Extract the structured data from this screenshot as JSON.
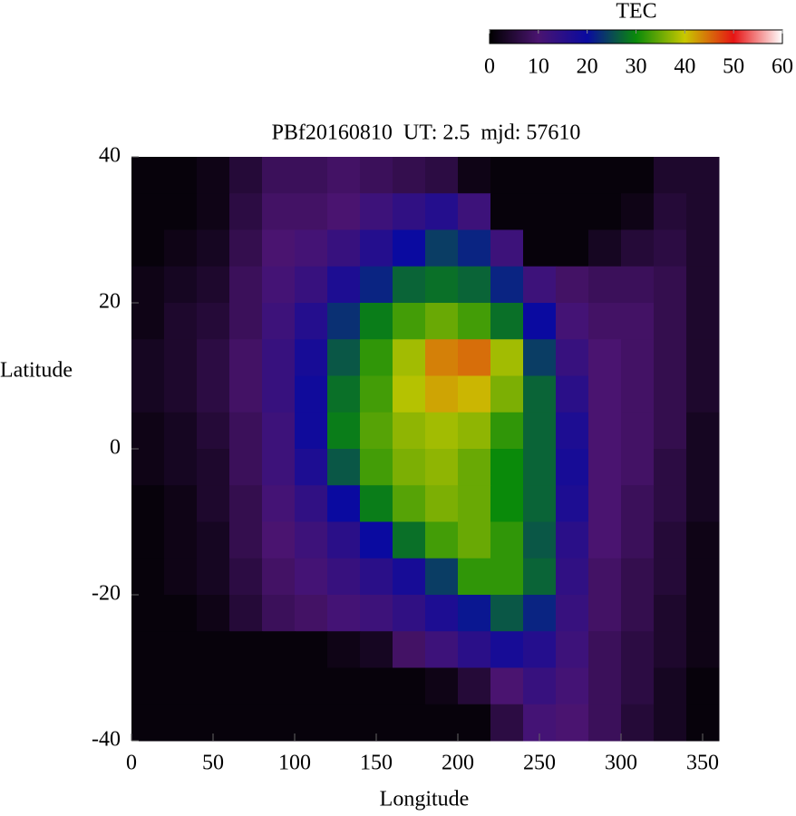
{
  "chart_data": {
    "type": "heatmap",
    "title": "PBf20160810  UT: 2.5  mjd: 57610",
    "x_label": "Longitude",
    "y_label": "Latitude",
    "colorbar_label": "TEC",
    "x": [
      10,
      30,
      50,
      70,
      90,
      110,
      130,
      150,
      170,
      190,
      210,
      230,
      250,
      270,
      290,
      310,
      330,
      350
    ],
    "y": [
      37.5,
      32.5,
      27.5,
      22.5,
      17.5,
      12.5,
      7.5,
      2.5,
      -2.5,
      -7.5,
      -12.5,
      -17.5,
      -22.5,
      -27.5,
      -32.5,
      -37.5
    ],
    "z": [
      [
        1,
        1,
        2,
        5,
        8,
        8,
        9,
        8,
        7,
        6,
        2,
        1,
        1,
        1,
        1,
        1,
        4,
        4
      ],
      [
        1,
        1,
        2,
        6,
        9,
        9,
        10,
        12,
        14,
        16,
        12,
        1,
        1,
        1,
        1,
        2,
        5,
        4
      ],
      [
        1,
        2,
        3,
        7,
        10,
        11,
        13,
        16,
        20,
        24,
        22,
        12,
        1,
        1,
        3,
        5,
        6,
        4
      ],
      [
        2,
        3,
        4,
        8,
        11,
        13,
        17,
        22,
        27,
        28,
        27,
        22,
        12,
        9,
        8,
        8,
        7,
        4
      ],
      [
        2,
        4,
        5,
        8,
        12,
        16,
        23,
        29,
        33,
        35,
        33,
        28,
        20,
        11,
        9,
        9,
        7,
        4
      ],
      [
        3,
        4,
        6,
        9,
        13,
        18,
        26,
        32,
        38,
        44,
        45,
        38,
        24,
        13,
        10,
        9,
        7,
        4
      ],
      [
        3,
        4,
        6,
        9,
        13,
        19,
        28,
        33,
        39,
        42,
        41,
        36,
        27,
        15,
        10,
        9,
        7,
        4
      ],
      [
        2,
        3,
        5,
        8,
        12,
        19,
        29,
        34,
        37,
        38,
        37,
        32,
        27,
        17,
        10,
        9,
        7,
        3
      ],
      [
        2,
        3,
        4,
        8,
        12,
        17,
        26,
        33,
        36,
        37,
        35,
        30,
        27,
        18,
        10,
        9,
        6,
        3
      ],
      [
        1,
        2,
        4,
        7,
        11,
        14,
        20,
        29,
        34,
        36,
        35,
        30,
        27,
        17,
        10,
        8,
        6,
        3
      ],
      [
        1,
        2,
        3,
        7,
        10,
        12,
        15,
        20,
        28,
        33,
        35,
        32,
        26,
        15,
        10,
        8,
        5,
        2
      ],
      [
        1,
        2,
        3,
        6,
        9,
        11,
        13,
        15,
        18,
        24,
        32,
        32,
        27,
        14,
        9,
        7,
        5,
        2
      ],
      [
        1,
        1,
        2,
        5,
        8,
        9,
        11,
        12,
        14,
        17,
        21,
        26,
        22,
        13,
        9,
        7,
        4,
        2
      ],
      [
        1,
        1,
        1,
        1,
        1,
        1,
        2,
        3,
        9,
        12,
        15,
        18,
        16,
        12,
        8,
        6,
        4,
        2
      ],
      [
        1,
        1,
        1,
        1,
        1,
        1,
        1,
        1,
        1,
        2,
        5,
        10,
        13,
        11,
        8,
        6,
        3,
        1
      ],
      [
        1,
        1,
        1,
        1,
        1,
        1,
        1,
        1,
        1,
        1,
        1,
        6,
        11,
        10,
        8,
        5,
        3,
        1
      ]
    ],
    "xlim": [
      0,
      360
    ],
    "xticks": [
      0,
      50,
      100,
      150,
      200,
      250,
      300,
      350
    ],
    "ylim": [
      -40,
      40
    ],
    "yticks": [
      -40,
      -20,
      0,
      20,
      40
    ],
    "zlim": [
      0,
      60
    ],
    "zticks": [
      0,
      10,
      20,
      30,
      40,
      50,
      60
    ],
    "colormap": [
      "#000000",
      "#4a1470",
      "#0a0aa0",
      "#0a8a0a",
      "#c8c800",
      "#e61414",
      "#ffffff"
    ]
  }
}
